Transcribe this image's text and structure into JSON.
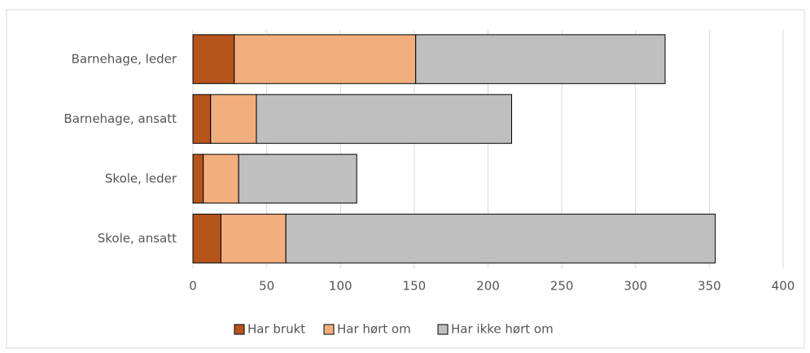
{
  "chart_data": {
    "type": "stacked-barh",
    "categories": [
      "Barnehage, leder",
      "Barnehage, ansatt",
      "Skole, leder",
      "Skole, ansatt"
    ],
    "series": [
      {
        "name": "Har brukt",
        "color": "#b5541b",
        "values": [
          28,
          12,
          7,
          19
        ]
      },
      {
        "name": "Har hørt om",
        "color": "#f2ae7c",
        "values": [
          123,
          31,
          24,
          44
        ]
      },
      {
        "name": "Har ikke hørt om",
        "color": "#bfbfbf",
        "values": [
          169,
          173,
          80,
          291
        ]
      }
    ],
    "xlim": [
      0,
      400
    ],
    "xticks": [
      0,
      50,
      100,
      150,
      200,
      250,
      300,
      350,
      400
    ],
    "grid": true,
    "legend": "bottom"
  }
}
